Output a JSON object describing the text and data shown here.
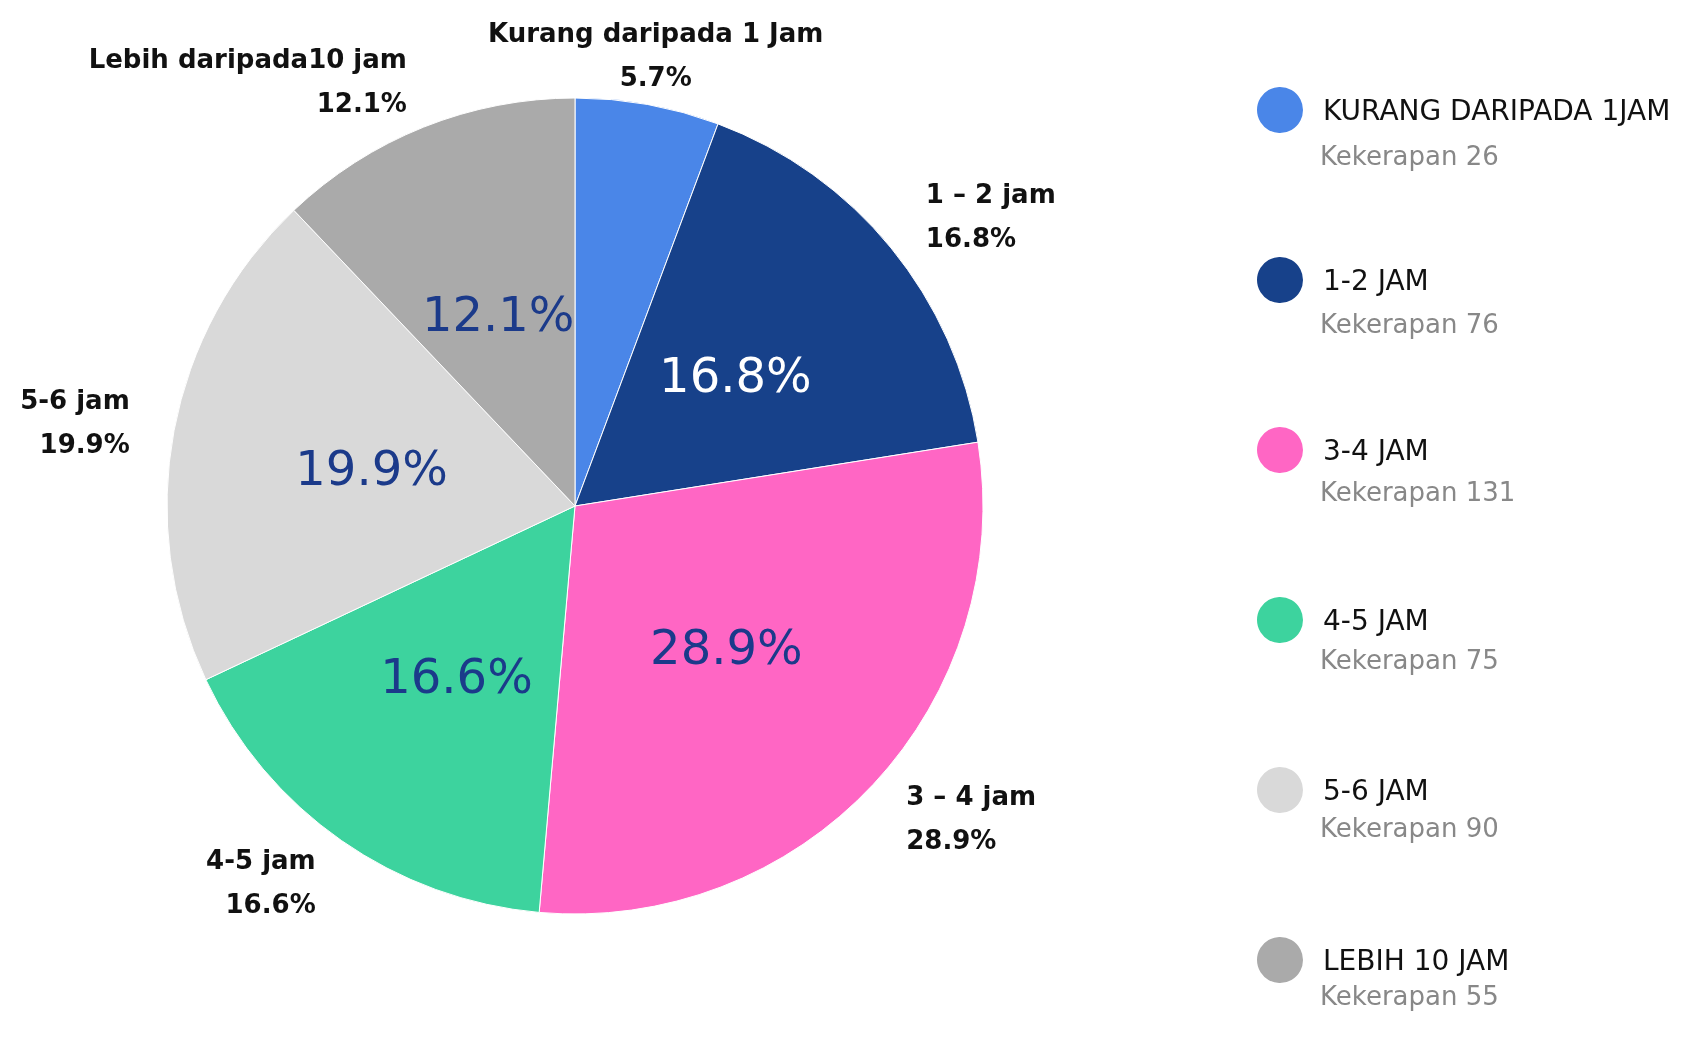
{
  "chart_data": {
    "type": "pie",
    "categories": [
      "KURANG DARIPADA 1JAM",
      "1-2 JAM",
      "3-4 JAM",
      "4-5 JAM",
      "5-6 JAM",
      "LEBIH 10 JAM"
    ],
    "values": [
      5.7,
      16.8,
      28.9,
      16.6,
      19.9,
      12.1
    ],
    "colors": [
      "#4a86e8",
      "#17418a",
      "#ff66c4",
      "#3dd39e",
      "#d9d9d9",
      "#aaaaaa"
    ],
    "value_labels": [
      "5.7%",
      "16.8%",
      "28.9%",
      "16.6%",
      "19.9%",
      "12.1%"
    ],
    "legend": "right",
    "annotations": [
      "Kurang daripada 1 Jam",
      "1 – 2 jam",
      "3 – 4 jam",
      "4-5 jam",
      "5-6 jam",
      "Lebih daripada10 jam",
      "Kekerapan 26",
      "Kekerapan 76",
      "Kekerapan 131",
      "Kekerapan 75",
      "Kekerapan 90",
      "Kekerapan 55"
    ]
  }
}
